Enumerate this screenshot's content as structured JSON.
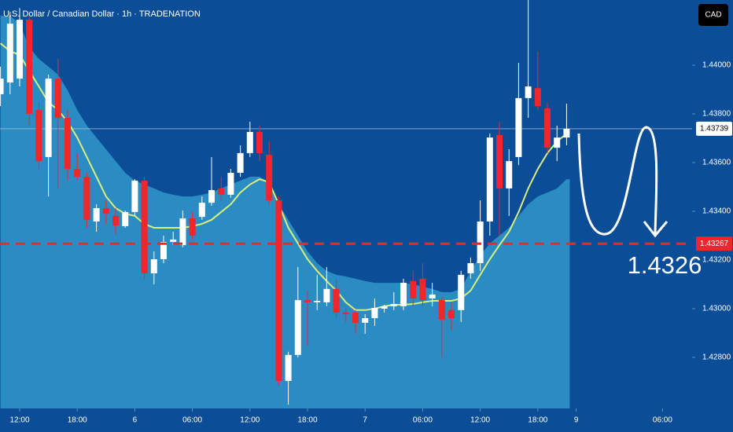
{
  "chart_data": {
    "type": "candlestick",
    "title": "U.S. Dollar / Canadian Dollar · 1h · TRADENATION",
    "currency_button": "CAD",
    "annotation": "1.4326",
    "x": [
      -2,
      -1,
      0,
      1,
      2,
      3,
      4,
      5,
      6,
      7,
      8,
      9,
      10,
      11,
      12,
      13,
      14,
      15,
      16,
      17,
      18,
      19,
      20,
      21,
      22,
      23,
      24,
      25,
      26,
      27,
      28,
      29,
      30,
      31,
      32,
      33,
      34,
      35,
      36,
      37,
      38,
      39,
      40,
      41,
      42,
      43,
      44,
      45,
      46,
      47,
      48,
      49,
      50,
      51,
      52,
      53,
      54,
      55,
      56,
      57
    ],
    "open": [
      1.43881,
      1.43929,
      1.43945,
      1.44187,
      1.43816,
      1.43623,
      1.43945,
      1.43784,
      1.43574,
      1.43542,
      1.43358,
      1.43413,
      1.43381,
      1.43339,
      1.43397,
      1.43526,
      1.43145,
      1.43203,
      1.43274,
      1.43261,
      1.43371,
      1.43377,
      1.43435,
      1.43494,
      1.43468,
      1.43558,
      1.43639,
      1.43726,
      1.43632,
      1.43445,
      1.42703,
      1.4281,
      1.43035,
      1.43026,
      1.43026,
      1.43081,
      1.42984,
      1.42984,
      1.42942,
      1.42961,
      1.43,
      1.4301,
      1.4301,
      1.43113,
      1.43123,
      1.43042,
      1.43035,
      1.42994,
      1.42994,
      1.43145,
      1.43187,
      1.43358,
      1.43713,
      1.43494,
      1.43623,
      1.43865,
      1.43906,
      1.43823,
      1.43661,
      1.43703
    ],
    "high": [
      1.43994,
      1.44219,
      1.44235,
      1.44219,
      1.43848,
      1.43961,
      1.44026,
      1.43816,
      1.43639,
      1.43558,
      1.43429,
      1.43445,
      1.43413,
      1.43403,
      1.43532,
      1.43542,
      1.43235,
      1.433,
      1.43316,
      1.43403,
      1.43397,
      1.43461,
      1.43623,
      1.43542,
      1.43574,
      1.43671,
      1.43768,
      1.43752,
      1.43687,
      1.43461,
      1.42823,
      1.43171,
      1.43074,
      1.43139,
      1.43171,
      1.43123,
      1.43003,
      1.42994,
      1.42977,
      1.43042,
      1.43016,
      1.43068,
      1.43123,
      1.43155,
      1.43187,
      1.43106,
      1.43048,
      1.43026,
      1.43155,
      1.4321,
      1.43445,
      1.43719,
      1.43768,
      1.43655,
      1.4401,
      1.44268,
      1.44058,
      1.43848,
      1.43752,
      1.43842
    ],
    "low": [
      1.43832,
      1.43881,
      1.43913,
      1.43752,
      1.43574,
      1.43461,
      1.43494,
      1.43526,
      1.43526,
      1.43332,
      1.43316,
      1.43348,
      1.43306,
      1.43332,
      1.43381,
      1.43123,
      1.431,
      1.43187,
      1.43261,
      1.43252,
      1.43284,
      1.43365,
      1.43423,
      1.43445,
      1.43455,
      1.43542,
      1.43623,
      1.43606,
      1.43429,
      1.42687,
      1.42606,
      1.428,
      1.42848,
      1.42994,
      1.4301,
      1.42961,
      1.42945,
      1.42897,
      1.42897,
      1.42929,
      1.42984,
      1.42994,
      1.42994,
      1.4301,
      1.4301,
      1.4301,
      1.428,
      1.42913,
      1.42945,
      1.43123,
      1.43155,
      1.433,
      1.433,
      1.43381,
      1.4359,
      1.43784,
      1.43816,
      1.43639,
      1.43606,
      1.43671
    ],
    "close": [
      1.43945,
      1.44171,
      1.44187,
      1.438,
      1.43606,
      1.43945,
      1.43784,
      1.43574,
      1.43542,
      1.43365,
      1.43413,
      1.4339,
      1.43342,
      1.43397,
      1.43526,
      1.43145,
      1.43203,
      1.43274,
      1.43284,
      1.43371,
      1.433,
      1.43435,
      1.43487,
      1.43468,
      1.43558,
      1.43639,
      1.43726,
      1.43639,
      1.43445,
      1.42703,
      1.4281,
      1.43035,
      1.43026,
      1.43032,
      1.43081,
      1.42984,
      1.42977,
      1.42942,
      1.42961,
      1.43003,
      1.4301,
      1.43019,
      1.43106,
      1.43042,
      1.43035,
      1.43058,
      1.42955,
      1.42961,
      1.43139,
      1.43187,
      1.43358,
      1.43703,
      1.43494,
      1.43606,
      1.43865,
      1.43913,
      1.43832,
      1.43661,
      1.43703,
      1.43739
    ],
    "up_color": "#ffffff",
    "down_color": "#f0262c",
    "moving_average": {
      "color": "#d8ef7c",
      "values": [
        1.4409,
        1.44058,
        1.44042,
        1.43977,
        1.43913,
        1.43848,
        1.43816,
        1.43768,
        1.43703,
        1.43623,
        1.43542,
        1.43461,
        1.43413,
        1.4339,
        1.43381,
        1.43348,
        1.43332,
        1.43332,
        1.43332,
        1.43332,
        1.43339,
        1.43348,
        1.43365,
        1.43397,
        1.43429,
        1.43477,
        1.4351,
        1.43532,
        1.43519,
        1.43429,
        1.43332,
        1.43268,
        1.43203,
        1.43155,
        1.43113,
        1.43074,
        1.43026,
        1.42994,
        1.42994,
        1.43,
        1.4301,
        1.43016,
        1.43016,
        1.43019,
        1.43026,
        1.43032,
        1.43032,
        1.43032,
        1.43042,
        1.43074,
        1.43139,
        1.43203,
        1.43261,
        1.43316,
        1.43397,
        1.43494,
        1.43574,
        1.43639,
        1.43687,
        1.43719
      ]
    },
    "band_upper": {
      "color": "#2a8cc2",
      "values": [
        1.44203,
        1.44203,
        1.44171,
        1.44074,
        1.44026,
        1.43994,
        1.43961,
        1.43897,
        1.43816,
        1.43752,
        1.43703,
        1.43655,
        1.43606,
        1.43558,
        1.43526,
        1.4351,
        1.43494,
        1.43477,
        1.43468,
        1.43461,
        1.43461,
        1.43468,
        1.43477,
        1.43494,
        1.4351,
        1.43526,
        1.43542,
        1.43542,
        1.43519,
        1.43429,
        1.43365,
        1.433,
        1.43235,
        1.43187,
        1.43155,
        1.43139,
        1.43132,
        1.43123,
        1.43113,
        1.43106,
        1.43106,
        1.43106,
        1.43106,
        1.431,
        1.4309,
        1.43081,
        1.43068,
        1.43068,
        1.43081,
        1.43155,
        1.43219,
        1.43268,
        1.433,
        1.43332,
        1.43381,
        1.43429,
        1.43461,
        1.43477,
        1.43494,
        1.43532
      ]
    },
    "last_price": 1.43739,
    "target_line": 1.43267,
    "target_color": "#f0262c",
    "xlim": [
      -2.05,
      70.08
    ],
    "xticks": [
      {
        "value": 0,
        "label": "12:00"
      },
      {
        "value": 6,
        "label": "18:00"
      },
      {
        "value": 12,
        "label": "6"
      },
      {
        "value": 18,
        "label": "06:00"
      },
      {
        "value": 24,
        "label": "12:00"
      },
      {
        "value": 30,
        "label": "18:00"
      },
      {
        "value": 36,
        "label": "7"
      },
      {
        "value": 42,
        "label": "06:00"
      },
      {
        "value": 48,
        "label": "12:00"
      },
      {
        "value": 54,
        "label": "18:00"
      },
      {
        "value": 58,
        "label": "9"
      },
      {
        "value": 67,
        "label": "06:00"
      }
    ],
    "ylim": [
      1.4259,
      1.44268
    ],
    "yticks": [
      {
        "value": 1.428,
        "label": "1.42800"
      },
      {
        "value": 1.43,
        "label": "1.43000"
      },
      {
        "value": 1.432,
        "label": "1.43200"
      },
      {
        "value": 1.434,
        "label": "1.43400"
      },
      {
        "value": 1.436,
        "label": "1.43600"
      },
      {
        "value": 1.438,
        "label": "1.43800"
      },
      {
        "value": 1.44,
        "label": "1.44000"
      }
    ]
  }
}
